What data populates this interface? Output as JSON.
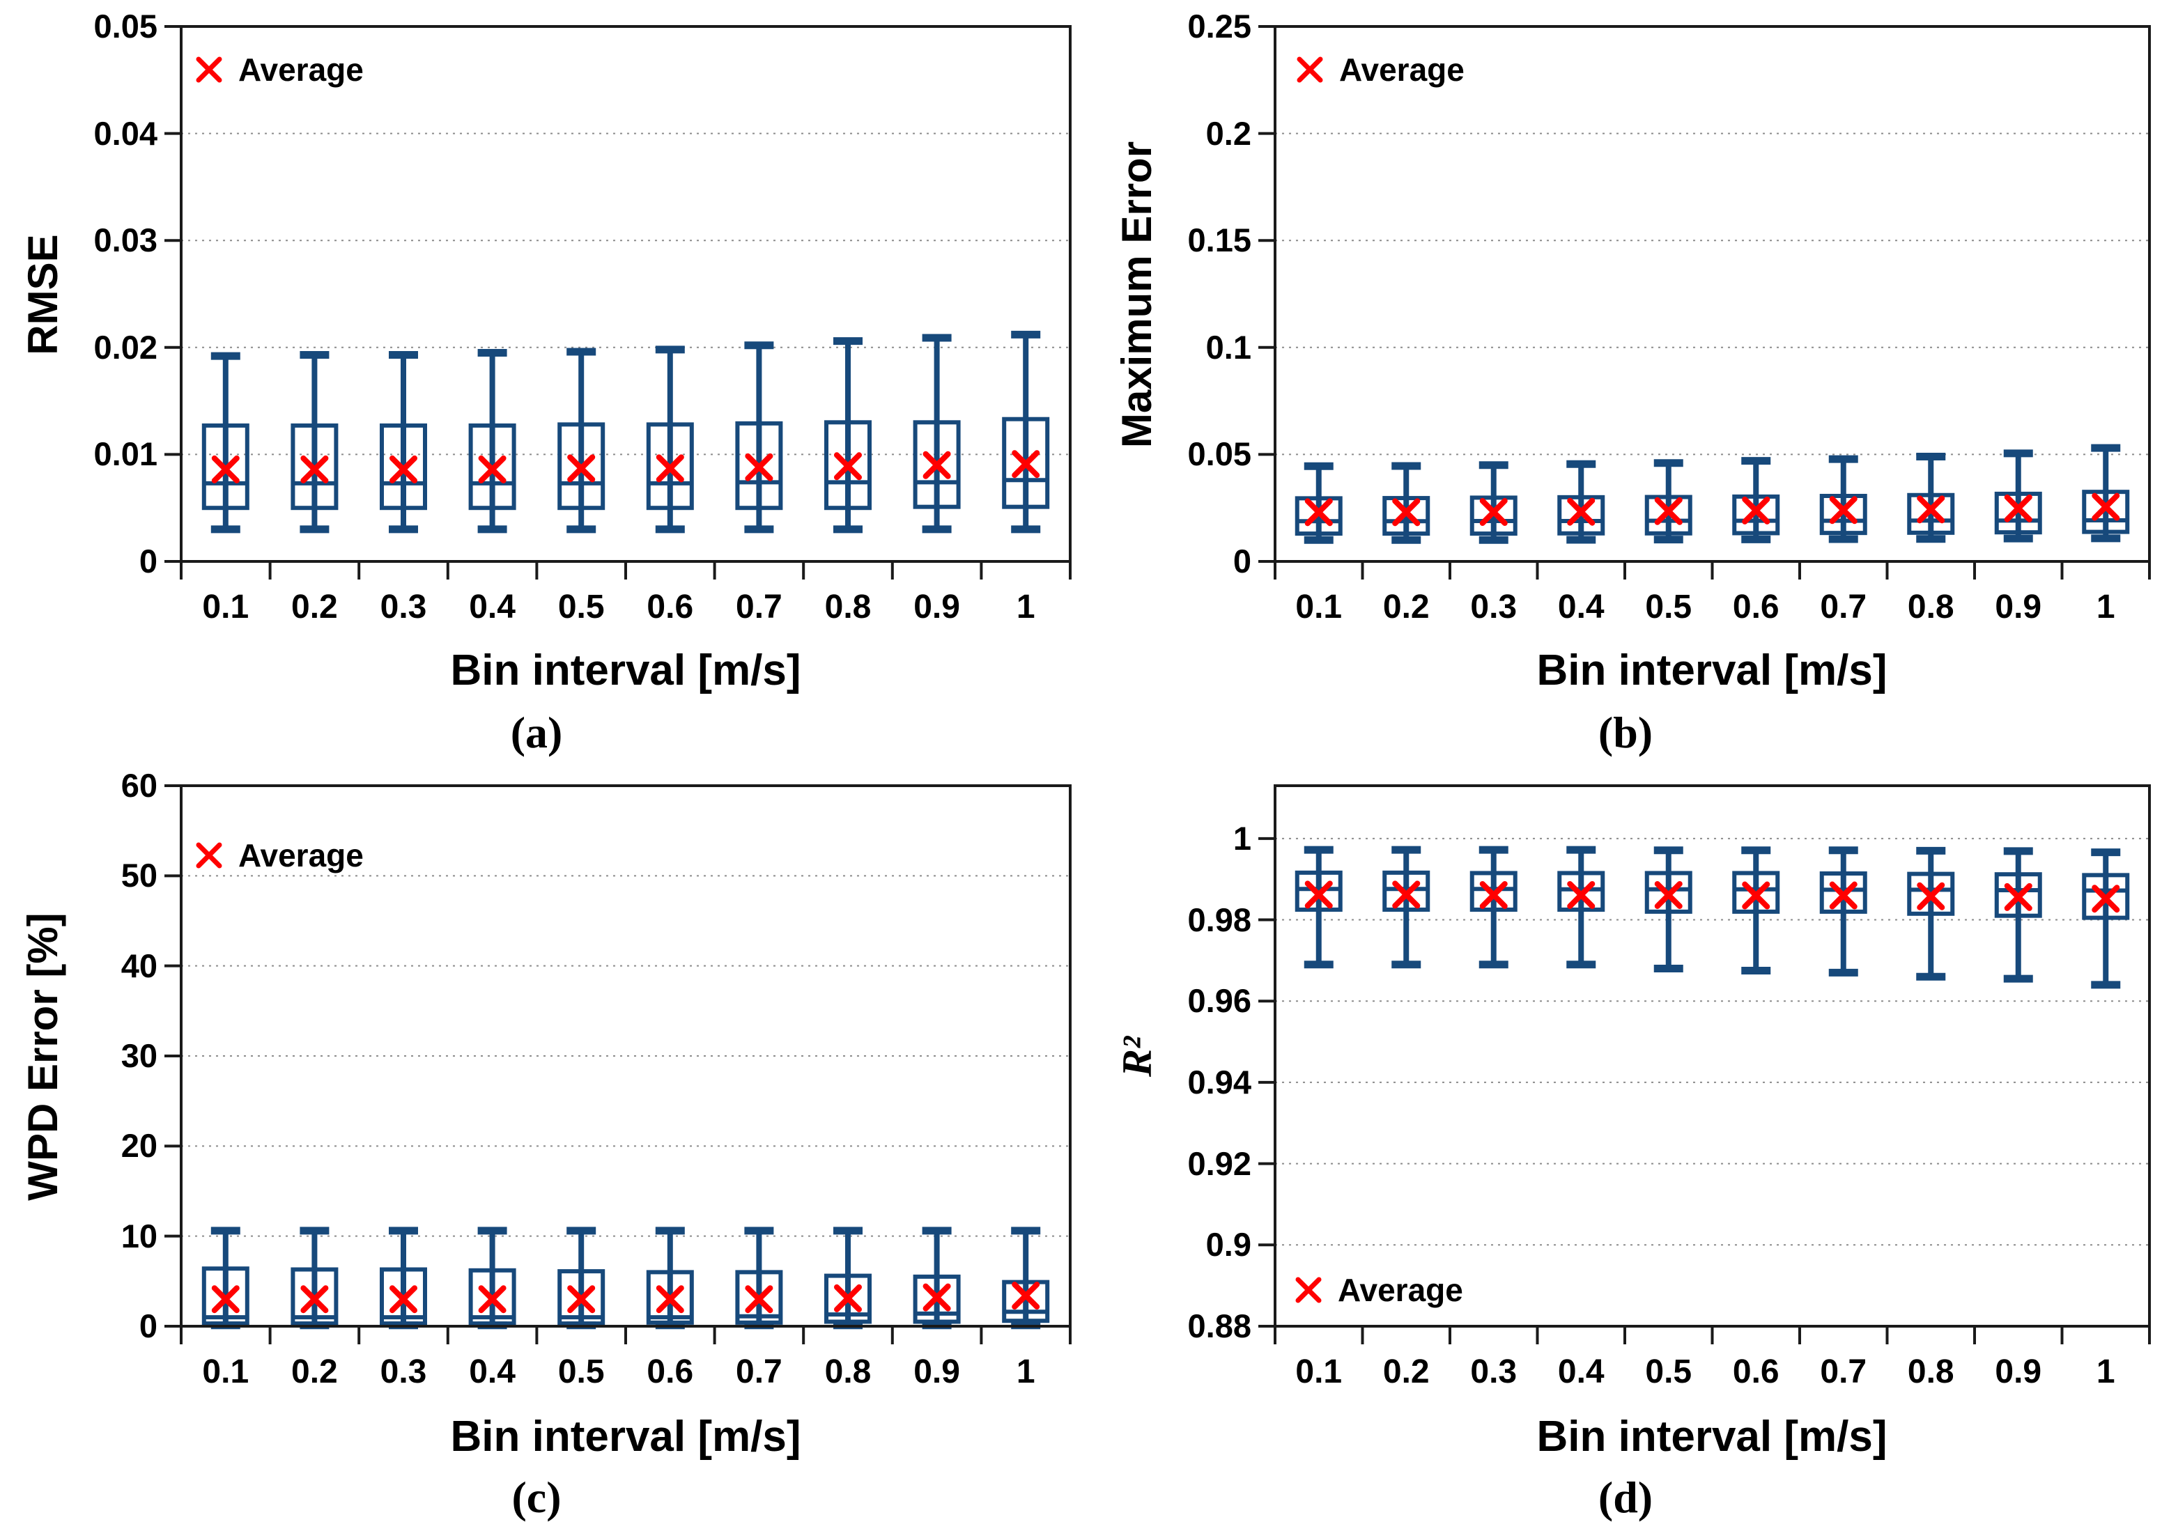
{
  "figure": {
    "background": "#ffffff",
    "box_color": "#17497B",
    "average_marker_color": "#FF0000",
    "grid_color": "#8C8C8C",
    "axis_color": "#1A1A1A"
  },
  "chart_data": [
    {
      "id": "a",
      "type": "box",
      "panel_label": "(a)",
      "ylabel": "RMSE",
      "xlabel": "Bin interval [m/s]",
      "legend": {
        "marker": "x-cross-icon",
        "label": "Average",
        "position": "top-left"
      },
      "grid": "horizontal-dotted",
      "categories": [
        "0.1",
        "0.2",
        "0.3",
        "0.4",
        "0.5",
        "0.6",
        "0.7",
        "0.8",
        "0.9",
        "1"
      ],
      "ylim": [
        0,
        0.05
      ],
      "yticks": [
        {
          "value": 0,
          "label": "0"
        },
        {
          "value": 0.01,
          "label": "0.01"
        },
        {
          "value": 0.02,
          "label": "0.02"
        },
        {
          "value": 0.03,
          "label": "0.03"
        },
        {
          "value": 0.04,
          "label": "0.04"
        },
        {
          "value": 0.05,
          "label": "0.05"
        }
      ],
      "series": {
        "min": [
          0.003,
          0.003,
          0.003,
          0.003,
          0.003,
          0.003,
          0.003,
          0.003,
          0.003,
          0.003
        ],
        "q1": [
          0.005,
          0.005,
          0.005,
          0.005,
          0.005,
          0.005,
          0.005,
          0.005,
          0.0051,
          0.0051
        ],
        "median": [
          0.0073,
          0.0073,
          0.0073,
          0.0073,
          0.0073,
          0.0073,
          0.0074,
          0.0074,
          0.0074,
          0.0076
        ],
        "q3": [
          0.0127,
          0.0127,
          0.0127,
          0.0127,
          0.0128,
          0.0128,
          0.0129,
          0.013,
          0.013,
          0.0133
        ],
        "max": [
          0.0192,
          0.0193,
          0.0193,
          0.0195,
          0.0196,
          0.0198,
          0.0202,
          0.0206,
          0.0209,
          0.0212
        ],
        "average": [
          0.0086,
          0.0086,
          0.0086,
          0.0086,
          0.0087,
          0.0087,
          0.0088,
          0.0089,
          0.009,
          0.0091
        ]
      }
    },
    {
      "id": "b",
      "type": "box",
      "panel_label": "(b)",
      "ylabel": "Maximum Error",
      "xlabel": "Bin interval [m/s]",
      "legend": {
        "marker": "x-cross-icon",
        "label": "Average",
        "position": "top-left"
      },
      "grid": "horizontal-dotted",
      "categories": [
        "0.1",
        "0.2",
        "0.3",
        "0.4",
        "0.5",
        "0.6",
        "0.7",
        "0.8",
        "0.9",
        "1"
      ],
      "ylim": [
        0,
        0.25
      ],
      "yticks": [
        {
          "value": 0,
          "label": "0"
        },
        {
          "value": 0.05,
          "label": "0.05"
        },
        {
          "value": 0.1,
          "label": "0.1"
        },
        {
          "value": 0.15,
          "label": "0.15"
        },
        {
          "value": 0.2,
          "label": "0.2"
        },
        {
          "value": 0.25,
          "label": "0.25"
        }
      ],
      "series": {
        "min": [
          0.01,
          0.01,
          0.01,
          0.0101,
          0.0102,
          0.0103,
          0.0104,
          0.0105,
          0.0107,
          0.0108
        ],
        "q1": [
          0.013,
          0.013,
          0.013,
          0.0131,
          0.0131,
          0.0132,
          0.0133,
          0.0134,
          0.0136,
          0.0138
        ],
        "median": [
          0.0188,
          0.0188,
          0.0189,
          0.0189,
          0.019,
          0.019,
          0.019,
          0.0191,
          0.0191,
          0.0192
        ],
        "q3": [
          0.0295,
          0.0296,
          0.0298,
          0.03,
          0.0301,
          0.0303,
          0.0306,
          0.031,
          0.0316,
          0.0325
        ],
        "max": [
          0.0445,
          0.0446,
          0.045,
          0.0455,
          0.046,
          0.047,
          0.0478,
          0.049,
          0.0505,
          0.053
        ],
        "average": [
          0.023,
          0.023,
          0.0231,
          0.0232,
          0.0235,
          0.0238,
          0.024,
          0.0243,
          0.0248,
          0.0255
        ]
      }
    },
    {
      "id": "c",
      "type": "box",
      "panel_label": "(c)",
      "ylabel": "WPD Error [%]",
      "xlabel": "Bin interval [m/s]",
      "legend": {
        "marker": "x-cross-icon",
        "label": "Average",
        "position": "top-left"
      },
      "grid": "horizontal-dotted",
      "categories": [
        "0.1",
        "0.2",
        "0.3",
        "0.4",
        "0.5",
        "0.6",
        "0.7",
        "0.8",
        "0.9",
        "1"
      ],
      "ylim": [
        0,
        60
      ],
      "yticks": [
        {
          "value": 0,
          "label": "0"
        },
        {
          "value": 10,
          "label": "10"
        },
        {
          "value": 20,
          "label": "20"
        },
        {
          "value": 30,
          "label": "30"
        },
        {
          "value": 40,
          "label": "40"
        },
        {
          "value": 50,
          "label": "50"
        },
        {
          "value": 60,
          "label": "60"
        }
      ],
      "series": {
        "min": [
          0.1,
          0.1,
          0.1,
          0.1,
          0.1,
          0.1,
          0.1,
          0.1,
          0.1,
          0.1
        ],
        "q1": [
          0.3,
          0.3,
          0.3,
          0.3,
          0.3,
          0.4,
          0.4,
          0.5,
          0.5,
          0.6
        ],
        "median": [
          1.0,
          1.0,
          1.0,
          1.0,
          1.0,
          1.0,
          1.1,
          1.3,
          1.4,
          1.6
        ],
        "q3": [
          6.4,
          6.3,
          6.3,
          6.2,
          6.1,
          6.0,
          6.0,
          5.6,
          5.5,
          4.9
        ],
        "max": [
          10.6,
          10.6,
          10.6,
          10.6,
          10.6,
          10.6,
          10.6,
          10.6,
          10.6,
          10.6
        ],
        "average": [
          3.0,
          3.0,
          3.0,
          3.0,
          3.0,
          3.0,
          3.0,
          3.1,
          3.2,
          3.4
        ]
      }
    },
    {
      "id": "d",
      "type": "box",
      "panel_label": "(d)",
      "ylabel": "R²",
      "xlabel": "Bin interval [m/s]",
      "legend": {
        "marker": "x-cross-icon",
        "label": "Average",
        "position": "bottom-left"
      },
      "grid": "horizontal-dotted",
      "categories": [
        "0.1",
        "0.2",
        "0.3",
        "0.4",
        "0.5",
        "0.6",
        "0.7",
        "0.8",
        "0.9",
        "1"
      ],
      "ylim": [
        0.88,
        1.013
      ],
      "yticks": [
        {
          "value": 0.88,
          "label": "0.88"
        },
        {
          "value": 0.9,
          "label": "0.9"
        },
        {
          "value": 0.92,
          "label": "0.92"
        },
        {
          "value": 0.94,
          "label": "0.94"
        },
        {
          "value": 0.96,
          "label": "0.96"
        },
        {
          "value": 0.98,
          "label": "0.98"
        },
        {
          "value": 1,
          "label": "1"
        }
      ],
      "series": {
        "min": [
          0.969,
          0.969,
          0.969,
          0.969,
          0.968,
          0.9675,
          0.967,
          0.966,
          0.9655,
          0.964
        ],
        "q1": [
          0.9825,
          0.9825,
          0.9825,
          0.9825,
          0.982,
          0.982,
          0.982,
          0.9815,
          0.981,
          0.9805
        ],
        "median": [
          0.9876,
          0.9876,
          0.9876,
          0.9875,
          0.9875,
          0.9875,
          0.9874,
          0.9874,
          0.9873,
          0.9872
        ],
        "q3": [
          0.9916,
          0.9916,
          0.9915,
          0.9915,
          0.9915,
          0.9915,
          0.9914,
          0.9913,
          0.9912,
          0.991
        ],
        "max": [
          0.9972,
          0.9972,
          0.9972,
          0.9972,
          0.9971,
          0.9971,
          0.9971,
          0.997,
          0.9969,
          0.9966
        ],
        "average": [
          0.9862,
          0.9862,
          0.9861,
          0.9861,
          0.9861,
          0.986,
          0.986,
          0.9858,
          0.9856,
          0.9852
        ]
      }
    }
  ]
}
